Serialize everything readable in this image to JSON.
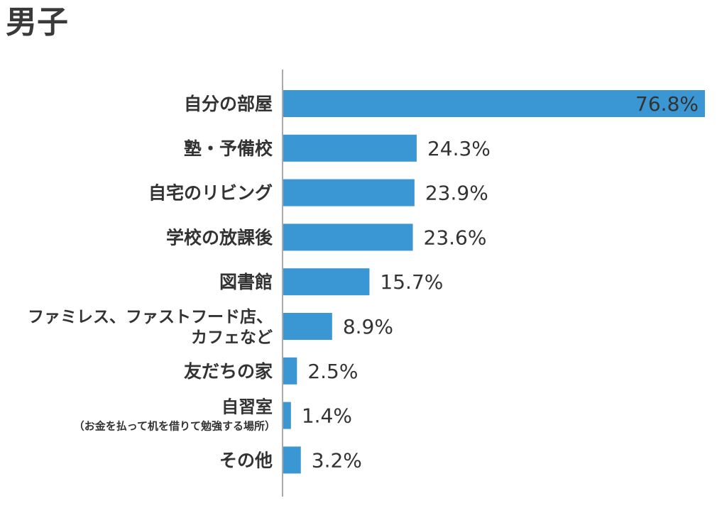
{
  "chart_data": {
    "type": "bar",
    "orientation": "horizontal",
    "title": "男子",
    "bar_color": "#3b96d4",
    "categories": [
      {
        "label": "自分の部屋",
        "sub": ""
      },
      {
        "label": "塾・予備校",
        "sub": ""
      },
      {
        "label": "自宅のリビング",
        "sub": ""
      },
      {
        "label": "学校の放課後",
        "sub": ""
      },
      {
        "label": "図書館",
        "sub": ""
      },
      {
        "label": "ファミレス、ファストフード店、\nカフェなど",
        "sub": ""
      },
      {
        "label": "友だちの家",
        "sub": ""
      },
      {
        "label": "自習室",
        "sub": "（お金を払って机を借りて勉強する場所）"
      },
      {
        "label": "その他",
        "sub": ""
      }
    ],
    "values": [
      76.8,
      24.3,
      23.9,
      23.6,
      15.7,
      8.9,
      2.5,
      1.4,
      3.2
    ],
    "value_labels": [
      "76.8%",
      "24.3%",
      "23.9%",
      "23.6%",
      "15.7%",
      "8.9%",
      "2.5%",
      "1.4%",
      "3.2%"
    ],
    "xlim": [
      0,
      76.8
    ],
    "grid": false,
    "legend": "none"
  }
}
